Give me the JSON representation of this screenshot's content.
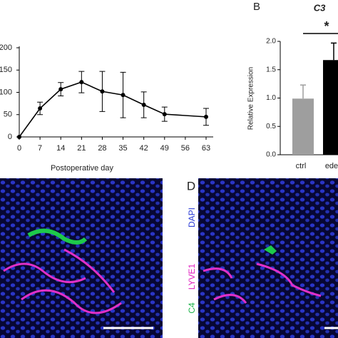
{
  "chart_data": [
    {
      "type": "line",
      "xlabel": "Postoperative day",
      "x": [
        0,
        7,
        14,
        21,
        28,
        35,
        42,
        49,
        63
      ],
      "series": [
        {
          "color": "#000000",
          "values": [
            0,
            64,
            107,
            123,
            102,
            94,
            72,
            51,
            45
          ],
          "errors": [
            null,
            14,
            15,
            24,
            45,
            51,
            29,
            16,
            19
          ]
        }
      ],
      "xlim": [
        0,
        63
      ],
      "xticks": [
        0,
        7,
        14,
        21,
        28,
        35,
        42,
        49,
        56,
        63
      ],
      "ylim": [
        0,
        200
      ],
      "yticks": [
        0,
        50,
        100,
        150,
        200
      ]
    },
    {
      "type": "bar",
      "panel_label": "B",
      "title": "C3",
      "ylabel": "Relative Expression",
      "categories": [
        "ctrl",
        "ede"
      ],
      "values": [
        0.99,
        1.67
      ],
      "errors": [
        0.24,
        0.3
      ],
      "colors": [
        "#9e9e9e",
        "#000000"
      ],
      "ylim": [
        0,
        2
      ],
      "yticks": [
        {
          "value": 0,
          "label": "0.0"
        },
        0.5,
        {
          "value": 1,
          "label": "1.0"
        },
        1.5,
        {
          "value": 2,
          "label": "2.0"
        }
      ],
      "annotation": "*"
    }
  ],
  "images": {
    "panel_d_label": "D",
    "stain_labels": [
      {
        "text": "C4",
        "color": "#1db34a"
      },
      {
        "text": "LYVE1",
        "color": "#e020c0"
      },
      {
        "text": "DAPI",
        "color": "#2a3bd6"
      }
    ]
  }
}
